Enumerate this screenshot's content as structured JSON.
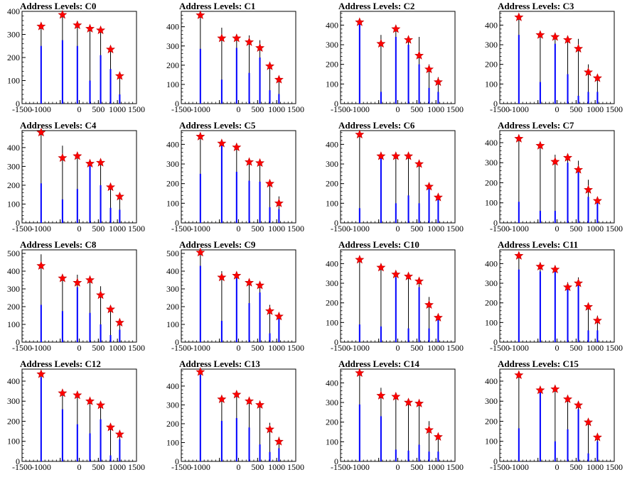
{
  "chart_data": [
    {
      "type": "bar",
      "title": "Address Levels: C0",
      "xlim": [
        -1500,
        1500
      ],
      "ylim": [
        0,
        400
      ],
      "xticks": [
        -1500,
        -1000,
        -500,
        0,
        500,
        1000,
        1500
      ],
      "yticks": [
        0,
        100,
        200,
        300,
        400
      ],
      "xtick_labels": [
        "-1500",
        "-1000",
        "",
        "0",
        "500",
        "1000",
        "1500"
      ],
      "peak_x": [
        -1000,
        -440,
        -50,
        280,
        560,
        820,
        1060
      ],
      "peak_heights": [
        335,
        385,
        340,
        325,
        318,
        235,
        120
      ],
      "fill_heights": [
        250,
        275,
        250,
        100,
        210,
        150,
        40
      ],
      "star_values": [
        335,
        385,
        340,
        325,
        318,
        235,
        120
      ]
    },
    {
      "type": "bar",
      "title": "Address Levels: C1",
      "xlim": [
        -1500,
        1500
      ],
      "ylim": [
        0,
        480
      ],
      "xticks": [
        -1500,
        -1000,
        -500,
        0,
        500,
        1000,
        1500
      ],
      "yticks": [
        0,
        100,
        200,
        300,
        400
      ],
      "xtick_labels": [
        "-1500",
        "-1000",
        "",
        "0",
        "500",
        "1000",
        "1500"
      ],
      "peak_x": [
        -1000,
        -440,
        -50,
        280,
        560,
        820,
        1060
      ],
      "peak_heights": [
        460,
        395,
        345,
        355,
        330,
        195,
        125
      ],
      "fill_heights": [
        285,
        125,
        290,
        160,
        240,
        70,
        50
      ],
      "star_values": [
        460,
        340,
        340,
        320,
        290,
        195,
        125
      ]
    },
    {
      "type": "bar",
      "title": "Address Levels: C2",
      "xlim": [
        -1500,
        1500
      ],
      "ylim": [
        0,
        470
      ],
      "xticks": [
        -1500,
        -1000,
        -500,
        0,
        500,
        1000,
        1500
      ],
      "yticks": [
        0,
        100,
        200,
        300,
        400
      ],
      "xtick_labels": [
        "-1500",
        "-1000",
        "",
        "0",
        "500",
        "1000",
        "1500"
      ],
      "peak_x": [
        -1000,
        -440,
        -50,
        280,
        560,
        820,
        1060
      ],
      "peak_heights": [
        415,
        350,
        385,
        335,
        340,
        200,
        135
      ],
      "fill_heights": [
        405,
        60,
        340,
        300,
        200,
        80,
        60
      ],
      "star_values": [
        415,
        305,
        380,
        325,
        245,
        175,
        110
      ]
    },
    {
      "type": "bar",
      "title": "Address Levels: C3",
      "xlim": [
        -1500,
        1500
      ],
      "ylim": [
        0,
        470
      ],
      "xticks": [
        -1500,
        -1000,
        -500,
        0,
        500,
        1000,
        1500
      ],
      "yticks": [
        0,
        100,
        200,
        300,
        400
      ],
      "xtick_labels": [
        "-1500",
        "-1000",
        "",
        "0",
        "500",
        "1000",
        "1500"
      ],
      "peak_x": [
        -1000,
        -440,
        -50,
        280,
        560,
        820,
        1060
      ],
      "peak_heights": [
        440,
        350,
        350,
        335,
        330,
        200,
        135
      ],
      "fill_heights": [
        350,
        110,
        305,
        150,
        40,
        60,
        60
      ],
      "star_values": [
        440,
        350,
        340,
        325,
        280,
        160,
        130
      ]
    },
    {
      "type": "bar",
      "title": "Address Levels: C4",
      "xlim": [
        -1500,
        1500
      ],
      "ylim": [
        0,
        490
      ],
      "xticks": [
        -1500,
        -1000,
        -500,
        0,
        500,
        1000,
        1500
      ],
      "yticks": [
        0,
        100,
        200,
        300,
        400
      ],
      "xtick_labels": [
        "-1500",
        "-1000",
        "",
        "0",
        "500",
        "1000",
        "1500"
      ],
      "peak_x": [
        -1000,
        -440,
        -50,
        280,
        560,
        820,
        1060
      ],
      "peak_heights": [
        480,
        410,
        360,
        320,
        330,
        195,
        145
      ],
      "fill_heights": [
        210,
        125,
        180,
        310,
        200,
        80,
        70
      ],
      "star_values": [
        480,
        345,
        355,
        315,
        320,
        190,
        140
      ]
    },
    {
      "type": "bar",
      "title": "Address Levels: C5",
      "xlim": [
        -1500,
        1500
      ],
      "ylim": [
        0,
        470
      ],
      "xticks": [
        -1500,
        -1000,
        -500,
        0,
        500,
        1000,
        1500
      ],
      "yticks": [
        0,
        100,
        200,
        300,
        400
      ],
      "xtick_labels": [
        "-1500",
        "-1000",
        "",
        "0",
        "500",
        "1000",
        "1500"
      ],
      "peak_x": [
        -1000,
        -440,
        -50,
        280,
        560,
        820,
        1060
      ],
      "peak_heights": [
        440,
        405,
        390,
        315,
        310,
        205,
        135
      ],
      "fill_heights": [
        250,
        400,
        260,
        215,
        210,
        80,
        70
      ],
      "star_values": [
        440,
        405,
        385,
        310,
        305,
        200,
        100
      ]
    },
    {
      "type": "bar",
      "title": "Address Levels: C6",
      "xlim": [
        -1500,
        1500
      ],
      "ylim": [
        0,
        470
      ],
      "xticks": [
        -1500,
        -1000,
        -500,
        0,
        500,
        1000,
        1500
      ],
      "yticks": [
        0,
        100,
        200,
        300,
        400
      ],
      "xtick_labels": [
        "-1500",
        "-1000",
        "",
        "0",
        "500",
        "1000",
        "1500"
      ],
      "peak_x": [
        -1000,
        -440,
        -50,
        280,
        560,
        820,
        1060
      ],
      "peak_heights": [
        450,
        345,
        345,
        340,
        305,
        200,
        130
      ],
      "fill_heights": [
        75,
        330,
        100,
        140,
        100,
        180,
        120
      ],
      "star_values": [
        450,
        340,
        340,
        340,
        300,
        185,
        130
      ]
    },
    {
      "type": "bar",
      "title": "Address Levels: C7",
      "xlim": [
        -1500,
        1500
      ],
      "ylim": [
        0,
        460
      ],
      "xticks": [
        -1500,
        -1000,
        -500,
        0,
        500,
        1000,
        1500
      ],
      "yticks": [
        0,
        100,
        200,
        300,
        400
      ],
      "xtick_labels": [
        "-1500",
        "-1000",
        "",
        "0",
        "500",
        "1000",
        "1500"
      ],
      "peak_x": [
        -1000,
        -440,
        -50,
        280,
        560,
        820,
        1060
      ],
      "peak_heights": [
        420,
        400,
        340,
        330,
        310,
        215,
        130
      ],
      "fill_heights": [
        105,
        60,
        60,
        300,
        270,
        130,
        110
      ],
      "star_values": [
        420,
        385,
        305,
        325,
        265,
        165,
        110
      ]
    },
    {
      "type": "bar",
      "title": "Address Levels: C8",
      "xlim": [
        -1500,
        1500
      ],
      "ylim": [
        0,
        520
      ],
      "xticks": [
        -1500,
        -1000,
        -500,
        0,
        500,
        1000,
        1500
      ],
      "yticks": [
        0,
        100,
        200,
        300,
        400,
        500
      ],
      "xtick_labels": [
        "-1500",
        "-1000",
        "",
        "0",
        "500",
        "1000",
        "1500"
      ],
      "peak_x": [
        -1000,
        -440,
        -50,
        280,
        560,
        820,
        1060
      ],
      "peak_heights": [
        495,
        370,
        380,
        360,
        315,
        200,
        130
      ],
      "fill_heights": [
        210,
        175,
        310,
        165,
        100,
        40,
        70
      ],
      "star_values": [
        430,
        360,
        335,
        350,
        265,
        185,
        110
      ]
    },
    {
      "type": "bar",
      "title": "Address Levels: C9",
      "xlim": [
        -1500,
        1500
      ],
      "ylim": [
        0,
        520
      ],
      "xticks": [
        -1500,
        -1000,
        -500,
        0,
        500,
        1000,
        1500
      ],
      "yticks": [
        0,
        100,
        200,
        300,
        400,
        500
      ],
      "xtick_labels": [
        "-1500",
        "-1000",
        "",
        "0",
        "500",
        "1000",
        "1500"
      ],
      "peak_x": [
        -1000,
        -440,
        -50,
        280,
        560,
        820,
        1060
      ],
      "peak_heights": [
        505,
        400,
        380,
        355,
        330,
        210,
        155
      ],
      "fill_heights": [
        430,
        120,
        360,
        220,
        280,
        50,
        140
      ],
      "star_values": [
        505,
        365,
        375,
        335,
        320,
        175,
        145
      ]
    },
    {
      "type": "bar",
      "title": "Address Levels: C10",
      "xlim": [
        -1500,
        1500
      ],
      "ylim": [
        0,
        470
      ],
      "xticks": [
        -1500,
        -1000,
        -500,
        0,
        500,
        1000,
        1500
      ],
      "yticks": [
        0,
        100,
        200,
        300,
        400
      ],
      "xtick_labels": [
        "-1500",
        "-1000",
        "",
        "0",
        "500",
        "1000",
        "1500"
      ],
      "peak_x": [
        -1000,
        -440,
        -50,
        280,
        560,
        820,
        1060
      ],
      "peak_heights": [
        420,
        390,
        350,
        345,
        315,
        230,
        130
      ],
      "fill_heights": [
        90,
        80,
        330,
        70,
        280,
        70,
        130
      ],
      "star_values": [
        420,
        380,
        345,
        335,
        310,
        190,
        125
      ]
    },
    {
      "type": "bar",
      "title": "Address Levels: C11",
      "xlim": [
        -1500,
        1500
      ],
      "ylim": [
        0,
        470
      ],
      "xticks": [
        -1500,
        -1000,
        -500,
        0,
        500,
        1000,
        1500
      ],
      "yticks": [
        0,
        100,
        200,
        300,
        400
      ],
      "xtick_labels": [
        "-1500",
        "-1000",
        "",
        "0",
        "500",
        "1000",
        "1500"
      ],
      "peak_x": [
        -1000,
        -440,
        -50,
        280,
        560,
        820,
        1060
      ],
      "peak_heights": [
        440,
        400,
        380,
        305,
        330,
        190,
        135
      ],
      "fill_heights": [
        370,
        360,
        360,
        290,
        310,
        60,
        60
      ],
      "star_values": [
        440,
        385,
        370,
        280,
        300,
        180,
        110
      ]
    },
    {
      "type": "bar",
      "title": "Address Levels: C12",
      "xlim": [
        -1500,
        1500
      ],
      "ylim": [
        0,
        460
      ],
      "xticks": [
        -1500,
        -1000,
        -500,
        0,
        500,
        1000,
        1500
      ],
      "yticks": [
        0,
        100,
        200,
        300,
        400
      ],
      "xtick_labels": [
        "-1500",
        "-1000",
        "",
        "0",
        "500",
        "1000",
        "1500"
      ],
      "peak_x": [
        -1000,
        -440,
        -50,
        280,
        560,
        820,
        1060
      ],
      "peak_heights": [
        435,
        345,
        335,
        310,
        290,
        175,
        135
      ],
      "fill_heights": [
        420,
        260,
        185,
        140,
        210,
        30,
        110
      ],
      "star_values": [
        435,
        340,
        330,
        300,
        280,
        170,
        135
      ]
    },
    {
      "type": "bar",
      "title": "Address Levels: C13",
      "xlim": [
        -1500,
        1500
      ],
      "ylim": [
        0,
        490
      ],
      "xticks": [
        -1500,
        -1000,
        -500,
        0,
        500,
        1000,
        1500
      ],
      "yticks": [
        0,
        100,
        200,
        300,
        400
      ],
      "xtick_labels": [
        "-1500",
        "-1000",
        "",
        "0",
        "500",
        "1000",
        "1500"
      ],
      "peak_x": [
        -1000,
        -440,
        -50,
        280,
        560,
        820,
        1060
      ],
      "peak_heights": [
        475,
        335,
        360,
        325,
        310,
        205,
        130
      ],
      "fill_heights": [
        460,
        215,
        230,
        180,
        90,
        50,
        70
      ],
      "star_values": [
        475,
        330,
        355,
        320,
        300,
        170,
        105
      ]
    },
    {
      "type": "bar",
      "title": "Address Levels: C14",
      "xlim": [
        -1500,
        1500
      ],
      "ylim": [
        0,
        470
      ],
      "xticks": [
        -1500,
        -1000,
        -500,
        0,
        500,
        1000,
        1500
      ],
      "yticks": [
        0,
        100,
        200,
        300,
        400
      ],
      "xtick_labels": [
        "-1500",
        "-1000",
        "",
        "0",
        "500",
        "1000",
        "1500"
      ],
      "peak_x": [
        -1000,
        -440,
        -50,
        280,
        560,
        820,
        1060
      ],
      "peak_heights": [
        450,
        375,
        340,
        300,
        300,
        205,
        135
      ],
      "fill_heights": [
        290,
        230,
        60,
        55,
        85,
        50,
        50
      ],
      "star_values": [
        450,
        335,
        330,
        300,
        295,
        160,
        125
      ]
    },
    {
      "type": "bar",
      "title": "Address Levels: C15",
      "xlim": [
        -1500,
        1500
      ],
      "ylim": [
        0,
        460
      ],
      "xticks": [
        -1500,
        -1000,
        -500,
        0,
        500,
        1000,
        1500
      ],
      "yticks": [
        0,
        100,
        200,
        300,
        400
      ],
      "xtick_labels": [
        "-1500",
        "-1000",
        "",
        "0",
        "500",
        "1000",
        "1500"
      ],
      "peak_x": [
        -1000,
        -440,
        -50,
        280,
        560,
        820,
        1060
      ],
      "peak_heights": [
        430,
        365,
        365,
        325,
        290,
        200,
        130
      ],
      "fill_heights": [
        165,
        350,
        100,
        160,
        260,
        40,
        100
      ],
      "star_values": [
        430,
        355,
        360,
        310,
        280,
        195,
        120
      ]
    }
  ],
  "colors": {
    "spike_outline": "#000000",
    "spike_fill": "#0000ff",
    "star_fill": "#ff0000",
    "star_stroke": "#c00000",
    "axis": "#000000",
    "background": "#ffffff"
  }
}
